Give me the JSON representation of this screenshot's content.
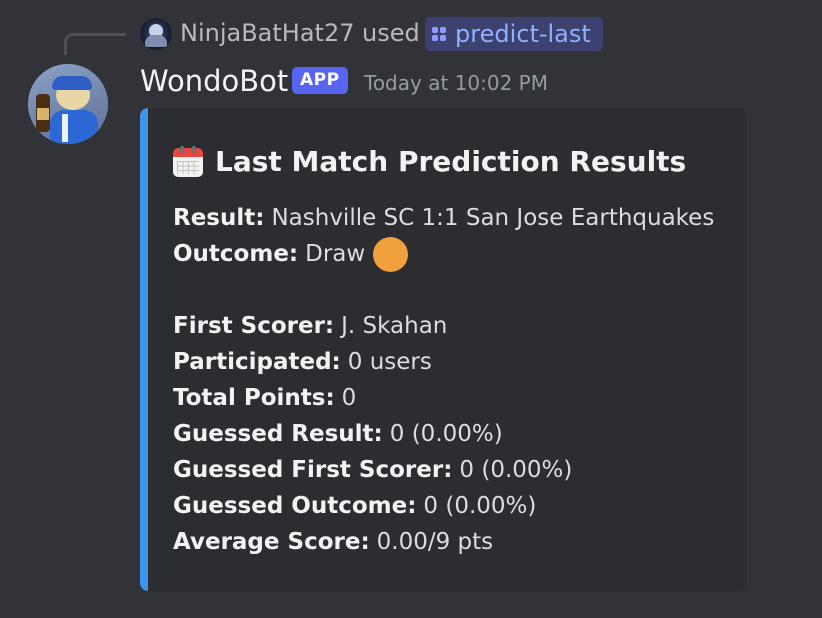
{
  "interaction": {
    "username": "NinjaBatHat27",
    "used_text": "used",
    "command": "predict-last"
  },
  "message": {
    "bot_name": "WondoBot",
    "badge": "APP",
    "timestamp": "Today at 10:02 PM"
  },
  "embed": {
    "accent_color": "#3d95ee",
    "title_icon": "calendar-icon",
    "title": "Last Match Prediction Results",
    "fields": {
      "result": {
        "label": "Result:",
        "value": "Nashville SC 1:1 San Jose Earthquakes"
      },
      "outcome": {
        "label": "Outcome:",
        "value": "Draw",
        "indicator": "orange-circle-icon",
        "indicator_color": "#f0a03c"
      },
      "first_scorer": {
        "label": "First Scorer:",
        "value": "J. Skahan"
      },
      "participated": {
        "label": "Participated:",
        "value": "0 users"
      },
      "total_points": {
        "label": "Total Points:",
        "value": "0"
      },
      "guessed_result": {
        "label": "Guessed Result:",
        "value": "0 (0.00%)"
      },
      "guessed_first_scorer": {
        "label": "Guessed First Scorer:",
        "value": "0 (0.00%)"
      },
      "guessed_outcome": {
        "label": "Guessed Outcome:",
        "value": "0 (0.00%)"
      },
      "average_score": {
        "label": "Average Score:",
        "value": "0.00/9 pts"
      }
    }
  }
}
